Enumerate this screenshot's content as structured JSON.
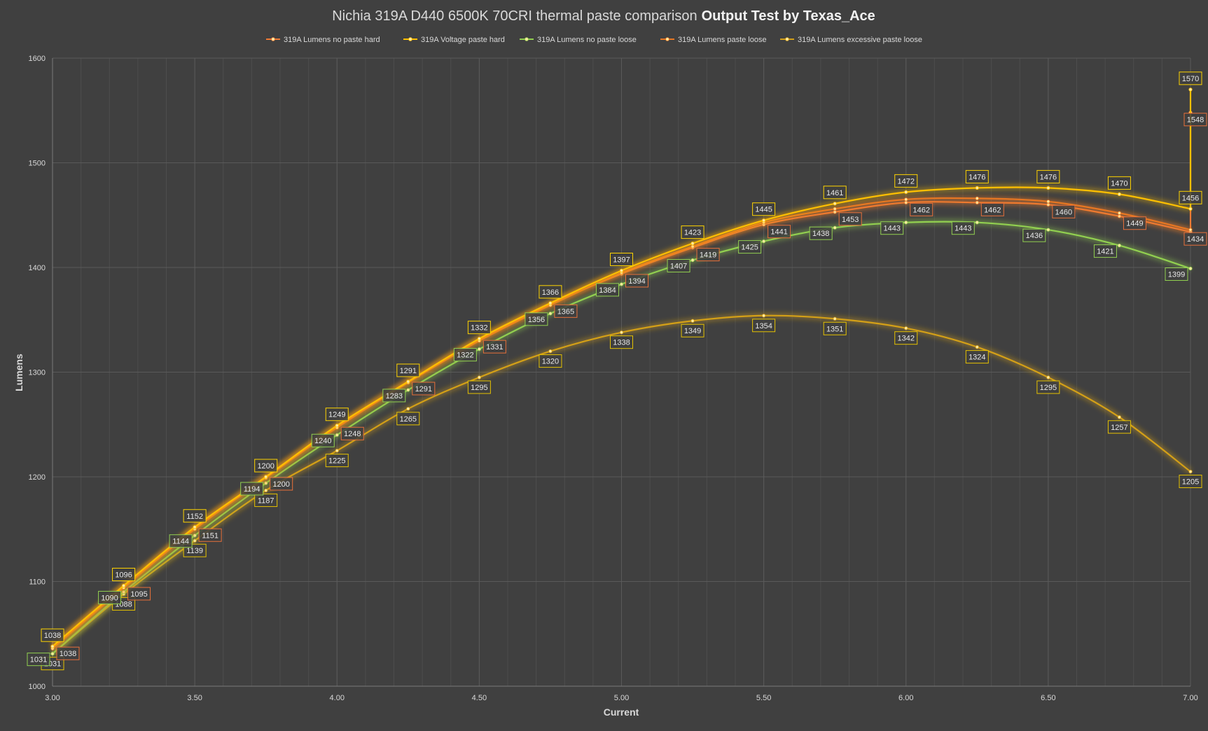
{
  "chart_data": {
    "type": "line",
    "title": "Nichia 319A D440 6500K 70CRI thermal paste comparison",
    "title_bold": "Output Test by Texas_Ace",
    "xlabel": "Current",
    "ylabel": "Lumens",
    "xlim": [
      3.0,
      7.0
    ],
    "ylim": [
      1000,
      1600
    ],
    "x_ticks": [
      "3.00",
      "3.50",
      "4.00",
      "4.50",
      "5.00",
      "5.50",
      "6.00",
      "6.50",
      "7.00"
    ],
    "y_ticks": [
      "1000",
      "1100",
      "1200",
      "1300",
      "1400",
      "1500",
      "1600"
    ],
    "grid": true,
    "legend_position": "top",
    "x": [
      3.0,
      3.25,
      3.5,
      3.75,
      4.0,
      4.25,
      4.5,
      4.75,
      5.0,
      5.25,
      5.5,
      5.75,
      6.0,
      6.25,
      6.5,
      6.75,
      7.0
    ],
    "series": [
      {
        "name": "319A Lumens no paste hard",
        "color": "#f07a35",
        "label_border": "#e8703a",
        "x": [
          3.0,
          3.25,
          3.5,
          3.75,
          4.0,
          4.25,
          4.5,
          4.75,
          5.0,
          5.25,
          5.5,
          5.75,
          6.0,
          6.25,
          6.5,
          6.75,
          7.0,
          7.0
        ],
        "values": [
          1038,
          1095,
          1151,
          1200,
          1248,
          1291,
          1331,
          1365,
          1394,
          1419,
          1441,
          1453,
          1462,
          1462,
          1460,
          1449,
          1434,
          1548
        ],
        "labels_shown": [
          true,
          true,
          true,
          true,
          true,
          true,
          true,
          true,
          true,
          true,
          true,
          true,
          true,
          true,
          true,
          true,
          true,
          true
        ]
      },
      {
        "name": "319A Voltage paste hard",
        "color": "#ffc000",
        "label_border": "#ffd400",
        "x": [
          3.0,
          3.25,
          3.5,
          3.75,
          4.0,
          4.25,
          4.5,
          4.75,
          5.0,
          5.25,
          5.5,
          5.75,
          6.0,
          6.25,
          6.5,
          6.75,
          7.0,
          7.0
        ],
        "values": [
          1038,
          1096,
          1152,
          1200,
          1249,
          1291,
          1332,
          1366,
          1397,
          1423,
          1445,
          1461,
          1472,
          1476,
          1476,
          1470,
          1456,
          1570
        ],
        "labels_shown": [
          true,
          true,
          true,
          true,
          true,
          true,
          true,
          true,
          true,
          true,
          true,
          true,
          true,
          true,
          true,
          true,
          true,
          true
        ]
      },
      {
        "name": "319A Lumens no paste loose",
        "color": "#92d050",
        "label_border": "#92d050",
        "x": [
          3.0,
          3.25,
          3.5,
          3.75,
          4.0,
          4.25,
          4.5,
          4.75,
          5.0,
          5.25,
          5.5,
          5.75,
          6.0,
          6.25,
          6.5,
          6.75,
          7.0
        ],
        "values": [
          1031,
          1090,
          1144,
          1194,
          1240,
          1283,
          1322,
          1356,
          1384,
          1407,
          1425,
          1438,
          1443,
          1443,
          1436,
          1421,
          1399
        ],
        "labels_shown": [
          true,
          true,
          true,
          true,
          true,
          true,
          true,
          true,
          true,
          true,
          true,
          true,
          true,
          true,
          true,
          true,
          true
        ]
      },
      {
        "name": "319A Lumens  paste loose",
        "color": "#e87722",
        "label_border": "#e87722",
        "x": [
          3.0,
          3.25,
          3.5,
          3.75,
          4.0,
          4.25,
          4.5,
          4.75,
          5.0,
          5.25,
          5.5,
          5.75,
          6.0,
          6.25,
          6.5,
          6.75,
          7.0
        ],
        "values": [
          1036,
          1094,
          1150,
          1199,
          1247,
          1290,
          1330,
          1364,
          1395,
          1420,
          1443,
          1456,
          1465,
          1466,
          1463,
          1452,
          1436
        ],
        "labels_shown": [
          false,
          false,
          false,
          false,
          false,
          false,
          false,
          false,
          false,
          false,
          false,
          false,
          false,
          false,
          false,
          false,
          false
        ]
      },
      {
        "name": "319A Lumens excessive paste loose",
        "color": "#d4a017",
        "label_border": "#e6c200",
        "x": [
          3.0,
          3.25,
          3.5,
          3.75,
          4.0,
          4.25,
          4.5,
          4.75,
          5.0,
          5.25,
          5.5,
          5.75,
          6.0,
          6.25,
          6.5,
          6.75,
          7.0
        ],
        "values": [
          1031,
          1088,
          1139,
          1187,
          1225,
          1265,
          1295,
          1320,
          1338,
          1349,
          1354,
          1351,
          1342,
          1324,
          1295,
          1257,
          1205
        ],
        "labels_shown": [
          true,
          true,
          true,
          true,
          true,
          true,
          true,
          true,
          true,
          true,
          true,
          true,
          true,
          true,
          true,
          true,
          true
        ]
      }
    ]
  }
}
